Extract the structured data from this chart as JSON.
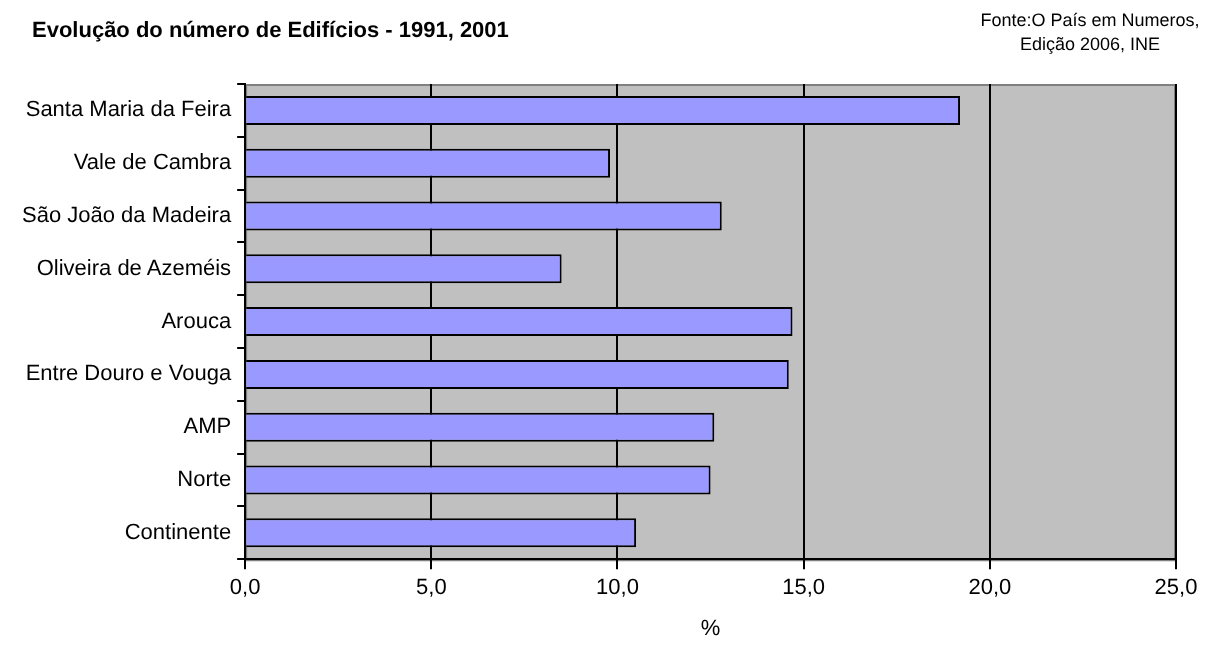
{
  "chart_data": {
    "type": "bar",
    "orientation": "horizontal",
    "title": "Evolução do número de Edifícios - 1991, 2001",
    "annotations": [
      "Fonte:O País em Numeros,\nEdição 2006, INE"
    ],
    "categories": [
      "Santa Maria da Feira",
      "Vale de Cambra",
      "São João da Madeira",
      "Oliveira de Azeméis",
      "Arouca",
      "Entre Douro e Vouga",
      "AMP",
      "Norte",
      "Continente"
    ],
    "values": [
      19.2,
      9.8,
      12.8,
      8.5,
      14.7,
      14.6,
      12.6,
      12.5,
      10.5
    ],
    "color": "#9999ff",
    "xlabel": "%",
    "xlim": [
      0,
      25
    ],
    "xticks": [
      {
        "value": 0,
        "label": "0,0"
      },
      {
        "value": 5,
        "label": "5,0"
      },
      {
        "value": 10,
        "label": "10,0"
      },
      {
        "value": 15,
        "label": "15,0"
      },
      {
        "value": 20,
        "label": "20,0"
      },
      {
        "value": 25,
        "label": "25,0"
      }
    ],
    "grid": "x",
    "legend": false
  }
}
